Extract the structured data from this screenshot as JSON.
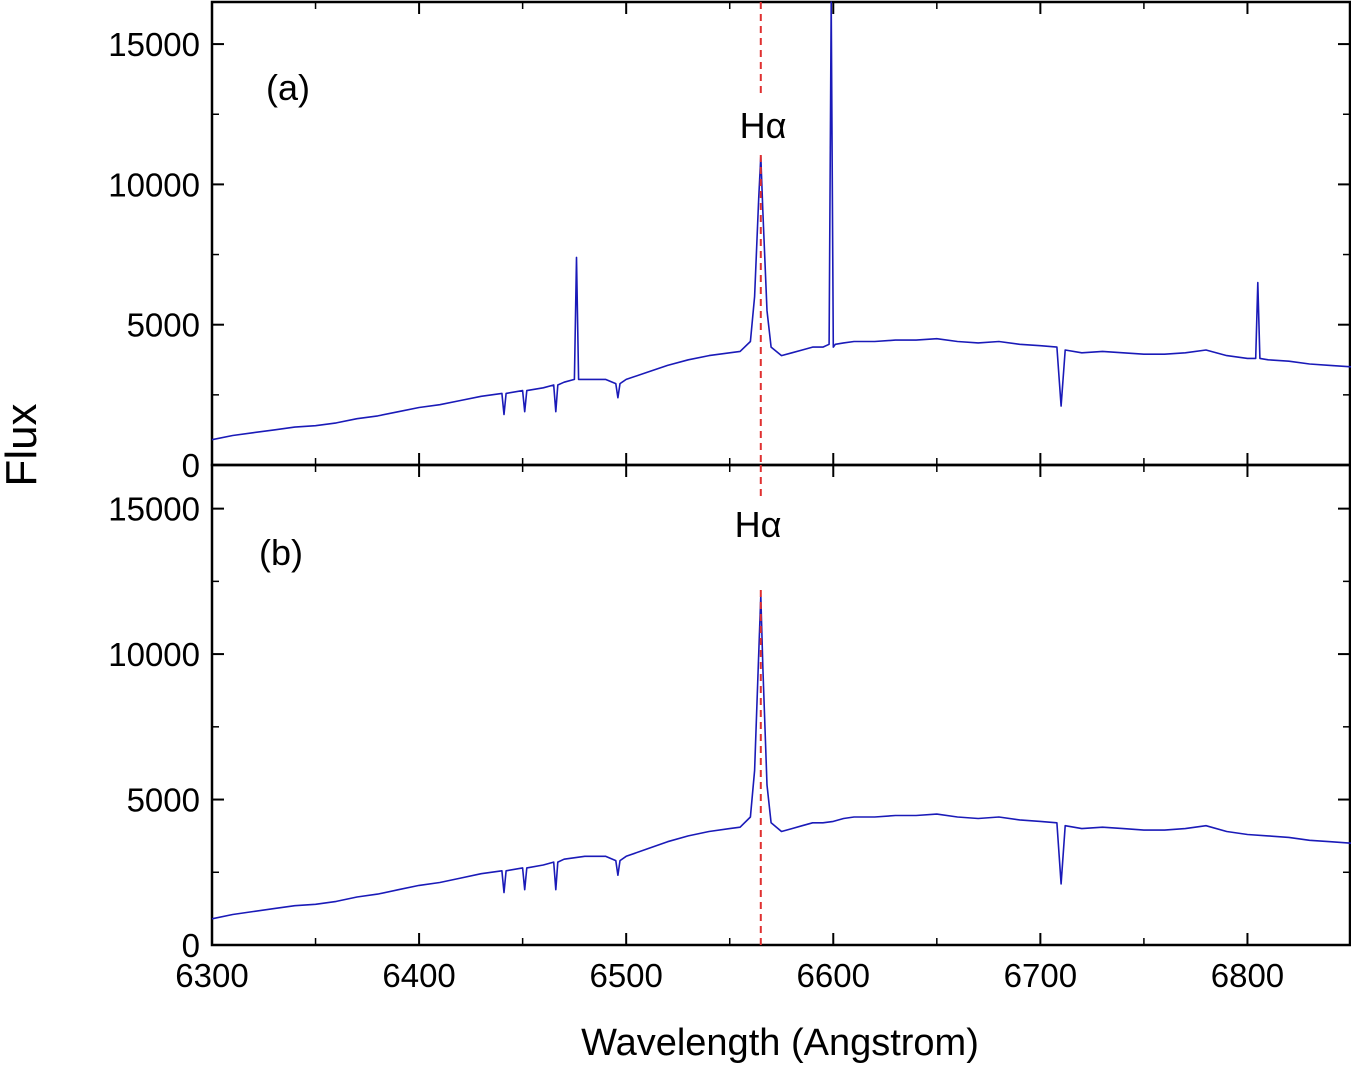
{
  "chart_data": [
    {
      "type": "line",
      "panel_label": "(a)",
      "line_annotation": "Hα",
      "reference_line_x": 6565,
      "xlim": [
        6300,
        6850
      ],
      "ylim": [
        0,
        16500
      ],
      "yticks": [
        0,
        5000,
        10000,
        15000
      ],
      "xticks": [
        6300,
        6400,
        6500,
        6600,
        6700,
        6800
      ],
      "series": [
        {
          "color": "#1a1ab8",
          "x": [
            6300,
            6310,
            6320,
            6330,
            6340,
            6350,
            6360,
            6370,
            6380,
            6390,
            6400,
            6410,
            6420,
            6430,
            6440,
            6441,
            6442,
            6450,
            6451,
            6452,
            6460,
            6465,
            6466,
            6467,
            6470,
            6475,
            6476,
            6477,
            6480,
            6490,
            6495,
            6496,
            6497,
            6500,
            6510,
            6520,
            6530,
            6540,
            6550,
            6555,
            6560,
            6562,
            6564,
            6565,
            6566,
            6568,
            6570,
            6575,
            6580,
            6585,
            6590,
            6595,
            6598,
            6599,
            6600,
            6601,
            6605,
            6610,
            6620,
            6630,
            6640,
            6650,
            6660,
            6670,
            6680,
            6690,
            6700,
            6708,
            6710,
            6712,
            6720,
            6730,
            6740,
            6750,
            6760,
            6770,
            6780,
            6790,
            6800,
            6804,
            6805,
            6806,
            6810,
            6820,
            6830,
            6840,
            6850
          ],
          "y": [
            900,
            1050,
            1150,
            1250,
            1350,
            1400,
            1500,
            1650,
            1750,
            1900,
            2050,
            2150,
            2300,
            2450,
            2550,
            1800,
            2550,
            2650,
            1900,
            2650,
            2750,
            2850,
            1900,
            2850,
            2950,
            3050,
            7400,
            3050,
            3050,
            3050,
            2900,
            2400,
            2900,
            3050,
            3300,
            3550,
            3750,
            3900,
            4000,
            4050,
            4400,
            6000,
            9500,
            11000,
            9000,
            5500,
            4200,
            3900,
            4000,
            4100,
            4200,
            4200,
            4300,
            16500,
            4200,
            4300,
            4350,
            4400,
            4400,
            4450,
            4450,
            4500,
            4400,
            4350,
            4400,
            4300,
            4250,
            4200,
            2100,
            4100,
            4000,
            4050,
            4000,
            3950,
            3950,
            4000,
            4100,
            3900,
            3800,
            3800,
            6500,
            3800,
            3750,
            3700,
            3600,
            3550,
            3500
          ]
        }
      ]
    },
    {
      "type": "line",
      "panel_label": "(b)",
      "line_annotation": "Hα",
      "reference_line_x": 6565,
      "xlim": [
        6300,
        6850
      ],
      "ylim": [
        0,
        16500
      ],
      "yticks": [
        0,
        5000,
        10000,
        15000
      ],
      "xticks": [
        6300,
        6400,
        6500,
        6600,
        6700,
        6800
      ],
      "xlabel": "Wavelength (Angstrom)",
      "series": [
        {
          "color": "#1a1ab8",
          "x": [
            6300,
            6310,
            6320,
            6330,
            6340,
            6350,
            6360,
            6370,
            6380,
            6390,
            6400,
            6410,
            6420,
            6430,
            6440,
            6441,
            6442,
            6450,
            6451,
            6452,
            6460,
            6465,
            6466,
            6467,
            6470,
            6480,
            6490,
            6495,
            6496,
            6497,
            6500,
            6510,
            6520,
            6530,
            6540,
            6550,
            6555,
            6560,
            6562,
            6564,
            6565,
            6566,
            6568,
            6570,
            6575,
            6580,
            6585,
            6590,
            6595,
            6600,
            6605,
            6610,
            6620,
            6630,
            6640,
            6650,
            6660,
            6670,
            6680,
            6690,
            6700,
            6708,
            6710,
            6712,
            6720,
            6730,
            6740,
            6750,
            6760,
            6770,
            6780,
            6790,
            6800,
            6810,
            6820,
            6830,
            6840,
            6850
          ],
          "y": [
            900,
            1050,
            1150,
            1250,
            1350,
            1400,
            1500,
            1650,
            1750,
            1900,
            2050,
            2150,
            2300,
            2450,
            2550,
            1800,
            2550,
            2650,
            1900,
            2650,
            2750,
            2850,
            1900,
            2850,
            2950,
            3050,
            3050,
            2900,
            2400,
            2900,
            3050,
            3300,
            3550,
            3750,
            3900,
            4000,
            4050,
            4400,
            6000,
            10000,
            12000,
            9500,
            5500,
            4200,
            3900,
            4000,
            4100,
            4200,
            4200,
            4250,
            4350,
            4400,
            4400,
            4450,
            4450,
            4500,
            4400,
            4350,
            4400,
            4300,
            4250,
            4200,
            2100,
            4100,
            4000,
            4050,
            4000,
            3950,
            3950,
            4000,
            4100,
            3900,
            3800,
            3750,
            3700,
            3600,
            3550,
            3500
          ]
        }
      ]
    }
  ],
  "ylabel": "Flux",
  "colors": {
    "spectrum": "#1a1ab8",
    "reference_line": "#e03030",
    "axes": "#000000"
  }
}
